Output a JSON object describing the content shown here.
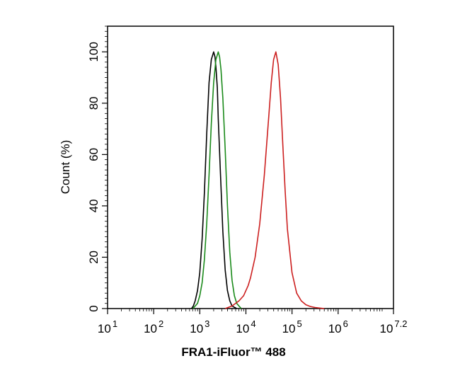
{
  "chart_data": {
    "type": "line",
    "xlabel": "FRA1-iFluor™ 488",
    "ylabel": "Count  (%)",
    "x_scale": "log10",
    "xlim": [
      1,
      7.2
    ],
    "ylim": [
      0,
      110
    ],
    "x_ticks": [
      {
        "base": "10",
        "exp": "1"
      },
      {
        "base": "10",
        "exp": "2"
      },
      {
        "base": "10",
        "exp": "3"
      },
      {
        "base": "10",
        "exp": "4"
      },
      {
        "base": "10",
        "exp": "5"
      },
      {
        "base": "10",
        "exp": "6"
      },
      {
        "base": "10",
        "exp": "7.2"
      }
    ],
    "y_ticks": [
      "0",
      "20",
      "40",
      "60",
      "80",
      "100"
    ],
    "grid": false,
    "legend": false,
    "series": [
      {
        "color": "#000000",
        "x_log": [
          2.82,
          2.86,
          2.9,
          2.95,
          3.0,
          3.05,
          3.1,
          3.15,
          3.2,
          3.25,
          3.3,
          3.33,
          3.35,
          3.38,
          3.4,
          3.45,
          3.5,
          3.55,
          3.6,
          3.65,
          3.7,
          3.75,
          3.8
        ],
        "y": [
          0,
          1,
          3,
          7,
          14,
          27,
          45,
          68,
          88,
          97,
          100,
          98,
          94,
          86,
          74,
          52,
          30,
          15,
          7,
          3,
          1,
          0.5,
          0
        ]
      },
      {
        "color": "#1a8a1a",
        "x_log": [
          2.85,
          2.9,
          2.95,
          3.0,
          3.05,
          3.1,
          3.15,
          3.2,
          3.25,
          3.3,
          3.35,
          3.4,
          3.43,
          3.46,
          3.5,
          3.55,
          3.6,
          3.65,
          3.7,
          3.75,
          3.8,
          3.85,
          3.9
        ],
        "y": [
          0,
          1,
          2,
          5,
          10,
          19,
          33,
          52,
          72,
          88,
          97,
          100,
          98,
          93,
          82,
          62,
          40,
          22,
          11,
          5,
          2,
          1,
          0
        ]
      },
      {
        "color": "#cc1f1f",
        "x_log": [
          3.55,
          3.7,
          3.85,
          3.95,
          4.0,
          4.05,
          4.1,
          4.2,
          4.3,
          4.4,
          4.5,
          4.55,
          4.6,
          4.65,
          4.7,
          4.75,
          4.8,
          4.85,
          4.9,
          5.0,
          5.1,
          5.2,
          5.3,
          5.4,
          5.5,
          5.6,
          5.7
        ],
        "y": [
          0,
          1,
          3,
          5,
          7,
          9,
          12,
          20,
          33,
          52,
          76,
          88,
          97,
          100,
          95,
          82,
          64,
          46,
          31,
          14,
          6,
          3,
          1.5,
          0.8,
          0.4,
          0.2,
          0
        ]
      }
    ]
  }
}
